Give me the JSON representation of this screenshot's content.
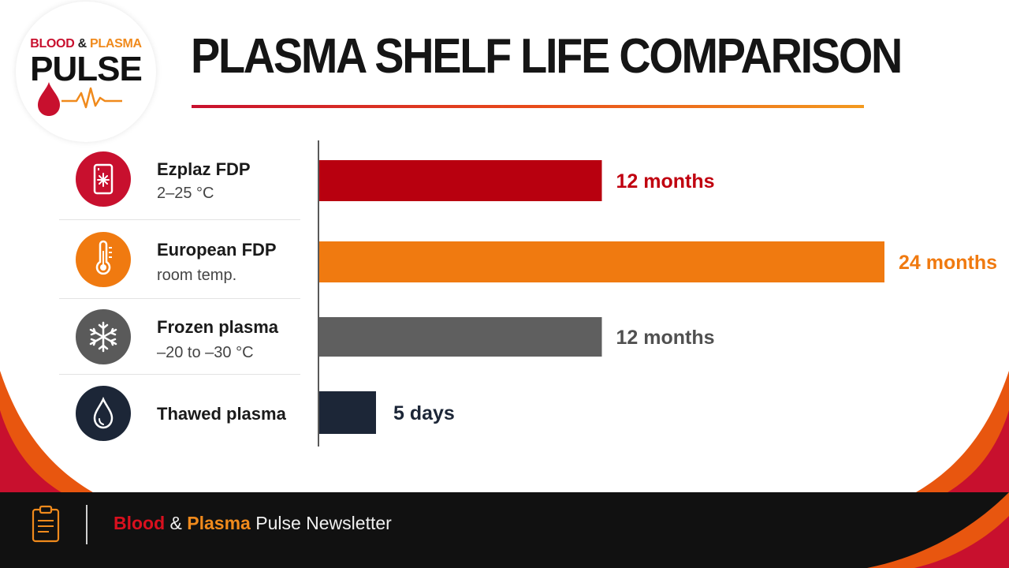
{
  "logo": {
    "word_blood": "BLOOD",
    "word_and": "&",
    "word_plasma": "PLASMA",
    "word_pulse": "PULSE"
  },
  "title": "PLASMA SHELF LIFE COMPARISON",
  "colors": {
    "red": "#b8000f",
    "orange": "#f07a10",
    "gray": "#5f5f5f",
    "navy": "#1c2637",
    "accent_red": "#c8102e",
    "accent_orange": "#f39a1e"
  },
  "chart_data": {
    "type": "bar",
    "orientation": "horizontal",
    "categories": [
      "Ezplaz FDP",
      "European FDP",
      "Frozen plasma",
      "Thawed plasma"
    ],
    "subtitles": [
      "2–25 °C",
      "room temp.",
      "–20 to –30 °C",
      ""
    ],
    "values_months": [
      12,
      24,
      12,
      0.1667
    ],
    "value_labels": [
      "12 months",
      "24 months",
      "12 months",
      "5 days"
    ],
    "bar_colors": [
      "#b8000f",
      "#f07a10",
      "#5f5f5f",
      "#1c2637"
    ],
    "label_colors": [
      "#c0000f",
      "#f07a10",
      "#505050",
      "#1c2637"
    ],
    "icons": [
      "fridge-snowflake-icon",
      "thermometer-icon",
      "snowflake-icon",
      "droplet-icon"
    ],
    "xlim": [
      0,
      24
    ],
    "grid": false,
    "legend": "none"
  },
  "footer": {
    "blood": "Blood",
    "and": " & ",
    "plasma": "Plasma",
    "rest": " Pulse Newsletter",
    "icon": "clipboard-icon"
  }
}
